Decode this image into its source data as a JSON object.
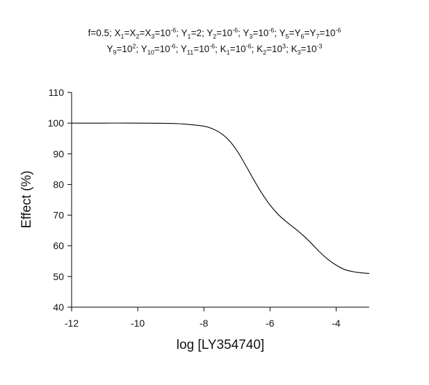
{
  "chart_data": {
    "type": "line",
    "title_lines": [
      [
        {
          "t": "f=0.5; X"
        },
        {
          "t": "1",
          "s": "sub"
        },
        {
          "t": "=X"
        },
        {
          "t": "2",
          "s": "sub"
        },
        {
          "t": "=X"
        },
        {
          "t": "3",
          "s": "sub"
        },
        {
          "t": "=10"
        },
        {
          "t": "-6",
          "s": "sup"
        },
        {
          "t": "; Y"
        },
        {
          "t": "1",
          "s": "sub"
        },
        {
          "t": "=2; Y"
        },
        {
          "t": "2",
          "s": "sub"
        },
        {
          "t": "=10"
        },
        {
          "t": "-6",
          "s": "sup"
        },
        {
          "t": "; Y"
        },
        {
          "t": "3",
          "s": "sub"
        },
        {
          "t": "=10"
        },
        {
          "t": "-6",
          "s": "sup"
        },
        {
          "t": "; Y"
        },
        {
          "t": "5",
          "s": "sub"
        },
        {
          "t": "=Y"
        },
        {
          "t": "6",
          "s": "sub"
        },
        {
          "t": "=Y"
        },
        {
          "t": "7",
          "s": "sub"
        },
        {
          "t": "=10"
        },
        {
          "t": "-6",
          "s": "sup"
        }
      ],
      [
        {
          "t": "Y"
        },
        {
          "t": "9",
          "s": "sub"
        },
        {
          "t": "=10"
        },
        {
          "t": "2",
          "s": "sup"
        },
        {
          "t": "; Y"
        },
        {
          "t": "10",
          "s": "sub"
        },
        {
          "t": "=10"
        },
        {
          "t": "-6",
          "s": "sup"
        },
        {
          "t": "; Y"
        },
        {
          "t": "11",
          "s": "sub"
        },
        {
          "t": "=10"
        },
        {
          "t": "-6",
          "s": "sup"
        },
        {
          "t": "; K"
        },
        {
          "t": "1",
          "s": "sub"
        },
        {
          "t": "=10"
        },
        {
          "t": "-6",
          "s": "sup"
        },
        {
          "t": "; K"
        },
        {
          "t": "2",
          "s": "sub"
        },
        {
          "t": "=10"
        },
        {
          "t": "3",
          "s": "sup"
        },
        {
          "t": "; K"
        },
        {
          "t": "3",
          "s": "sub"
        },
        {
          "t": "=10"
        },
        {
          "t": "-3",
          "s": "sup"
        }
      ]
    ],
    "xlabel": "log [LY354740]",
    "ylabel": "Effect (%)",
    "xlim": [
      -12,
      -3
    ],
    "ylim": [
      40,
      110
    ],
    "xticks": [
      -12,
      -10,
      -8,
      -6,
      -4
    ],
    "yticks": [
      40,
      50,
      60,
      70,
      80,
      90,
      100,
      110
    ],
    "grid": false,
    "series": [
      {
        "color": "#000000",
        "x": [
          -12,
          -11,
          -10,
          -9,
          -8.5,
          -8,
          -7.75,
          -7.5,
          -7.25,
          -7,
          -6.75,
          -6.5,
          -6.25,
          -6,
          -5.75,
          -5.5,
          -5.25,
          -5,
          -4.75,
          -4.5,
          -4.25,
          -4,
          -3.75,
          -3.5,
          -3.25,
          -3
        ],
        "y": [
          100,
          100,
          100,
          99.9,
          99.6,
          99.0,
          98.2,
          96.8,
          94.5,
          91.0,
          86.5,
          81.7,
          77.2,
          73.3,
          70.2,
          67.8,
          65.7,
          63.4,
          60.8,
          58.0,
          55.6,
          53.7,
          52.3,
          51.6,
          51.2,
          51.0
        ]
      }
    ]
  }
}
